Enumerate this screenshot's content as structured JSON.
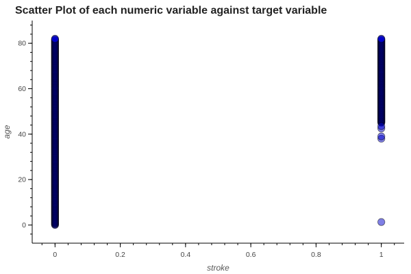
{
  "chart_data": {
    "type": "scatter",
    "title": "Scatter Plot of each numeric variable against target variable",
    "xlabel": "stroke",
    "ylabel": "age",
    "xlim": [
      -0.07,
      1.07
    ],
    "ylim": [
      -8,
      90
    ],
    "x_ticks": [
      0,
      0.2,
      0.4,
      0.6,
      0.8,
      1
    ],
    "x_tick_labels": [
      "0",
      "0.2",
      "0.4",
      "0.6",
      "0.8",
      "1"
    ],
    "y_ticks": [
      0,
      20,
      40,
      60,
      80
    ],
    "y_tick_labels": [
      "0",
      "20",
      "40",
      "60",
      "80"
    ],
    "grid": false,
    "marker_color": "#0000cc",
    "marker_edge": "#000000",
    "series": [
      {
        "x": 0,
        "y_range": [
          0,
          82
        ],
        "note_visible": "dense column of points"
      },
      {
        "x": 1,
        "y_range": [
          45,
          82
        ],
        "extra_points": [
          1.3,
          38,
          39,
          42.5,
          43.5
        ]
      }
    ]
  }
}
